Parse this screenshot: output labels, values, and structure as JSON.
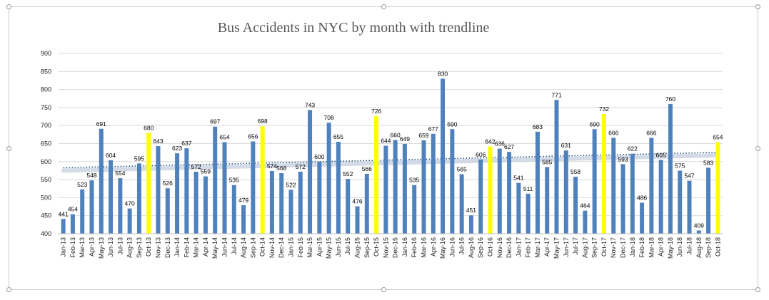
{
  "chart_data": {
    "type": "bar",
    "title": "Bus Accidents in NYC by month with trendline",
    "xlabel": "",
    "ylabel": "",
    "ylim": [
      400,
      900
    ],
    "yticks": [
      400,
      450,
      500,
      550,
      600,
      650,
      700,
      750,
      800,
      850,
      900
    ],
    "grid": true,
    "legend": "none",
    "trendline": "linear",
    "colors": {
      "default": "#4f81bd",
      "october": "#ffff00",
      "trend": "#1f4e79",
      "trend_band": "#c9d3e0",
      "grid": "#d9d9d9"
    },
    "categories": [
      "Jan-13",
      "Feb-13",
      "Mar-13",
      "Apr-13",
      "May-13",
      "Jun-13",
      "Jul-13",
      "Aug-13",
      "Sep-13",
      "Oct-13",
      "Nov-13",
      "Dec-13",
      "Jan-14",
      "Feb-14",
      "Mar-14",
      "Apr-14",
      "May-14",
      "Jun-14",
      "Jul-14",
      "Aug-14",
      "Sep-14",
      "Oct-14",
      "Nov-14",
      "Dec-14",
      "Jan-15",
      "Feb-15",
      "Mar-15",
      "Apr-15",
      "May-15",
      "Jun-15",
      "Jul-15",
      "Aug-15",
      "Sep-15",
      "Oct-15",
      "Nov-15",
      "Dec-15",
      "Jan-16",
      "Feb-16",
      "Mar-16",
      "Apr-16",
      "May-16",
      "Jun-16",
      "Jul-16",
      "Aug-16",
      "Sep-16",
      "Oct-16",
      "Nov-16",
      "Dec-16",
      "Jan-17",
      "Feb-17",
      "Mar-17",
      "Apr-17",
      "May-17",
      "Jun-17",
      "Jul-17",
      "Aug-17",
      "Sep-17",
      "Oct-17",
      "Nov-17",
      "Dec-17",
      "Jan-18",
      "Feb-18",
      "Mar-18",
      "Apr-18",
      "May-18",
      "Jun-18",
      "Jul-18",
      "Aug-18",
      "Sep-18",
      "Oct-18"
    ],
    "values": [
      441,
      454,
      523,
      548,
      691,
      604,
      554,
      470,
      595,
      680,
      643,
      526,
      623,
      637,
      572,
      559,
      697,
      654,
      535,
      479,
      656,
      698,
      574,
      568,
      522,
      572,
      743,
      600,
      708,
      655,
      552,
      476,
      566,
      726,
      644,
      660,
      649,
      535,
      659,
      677,
      830,
      690,
      565,
      451,
      606,
      642,
      636,
      627,
      541,
      511,
      683,
      585,
      771,
      631,
      558,
      464,
      690,
      732,
      666,
      593,
      622,
      486,
      666,
      605,
      760,
      575,
      547,
      409,
      583,
      654
    ],
    "highlighted": [
      "Oct-13",
      "Oct-14",
      "Oct-15",
      "Oct-16",
      "Oct-17",
      "Oct-18"
    ]
  }
}
